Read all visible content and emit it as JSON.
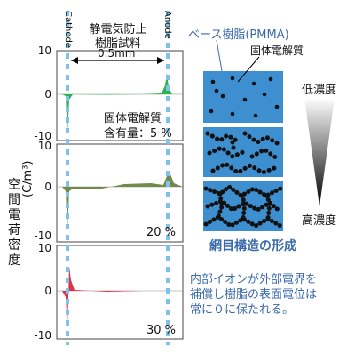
{
  "header": {
    "sample_label_line1": "静電気防止",
    "sample_label_line2": "樹脂試料",
    "gap_label": "0.5mm",
    "cathode": "Cathode",
    "anode": "Anode"
  },
  "y_axis": {
    "label": "空間電荷密度",
    "unit": "(C/m³)"
  },
  "panels": [
    {
      "ticks": [
        "10",
        "0",
        "-10"
      ],
      "label_line1": "固体電解質",
      "label_line2": "含有量：5 %",
      "color": "#2bb24c"
    },
    {
      "ticks": [
        "10",
        "0",
        "-10"
      ],
      "label": "20 %",
      "color": "#6f8a4a"
    },
    {
      "ticks": [
        "10",
        "0",
        "-10"
      ],
      "label": "30 %",
      "color": "#e0314a"
    }
  ],
  "right": {
    "base_resin": "ベース樹脂(PMMA)",
    "solid_electrolyte": "固体電解質",
    "low_concentration": "低濃度",
    "high_concentration": "高濃度",
    "network_title": "網目構造の形成",
    "explanation_line1": "内部イオンが外部電界を",
    "explanation_line2": "補償し樹脂の表面電位は",
    "explanation_line3": "常に０に保たれる。",
    "box_color": "#3d8fd0",
    "accent_color": "#3a6aaa"
  }
}
